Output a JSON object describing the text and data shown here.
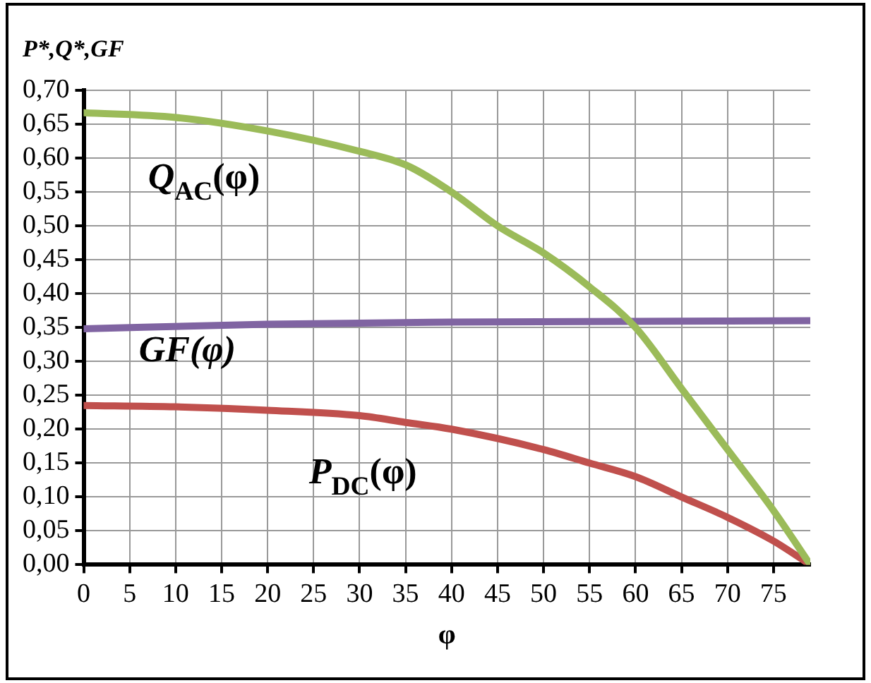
{
  "chart_data": {
    "type": "line",
    "ylabel": "P*,Q*,GF",
    "xlabel": "φ",
    "xlim": [
      0,
      79
    ],
    "xticks": [
      0,
      5,
      10,
      15,
      20,
      25,
      30,
      35,
      40,
      45,
      50,
      55,
      60,
      65,
      70,
      75
    ],
    "ylim": [
      0,
      0.7
    ],
    "yticks": [
      {
        "value": 0,
        "label": "0,00"
      },
      {
        "value": 0.05,
        "label": "0,05"
      },
      {
        "value": 0.1,
        "label": "0,10"
      },
      {
        "value": 0.15,
        "label": "0,15"
      },
      {
        "value": 0.2,
        "label": "0,20"
      },
      {
        "value": 0.25,
        "label": "0,25"
      },
      {
        "value": 0.3,
        "label": "0,30"
      },
      {
        "value": 0.35,
        "label": "0,35"
      },
      {
        "value": 0.4,
        "label": "0,40"
      },
      {
        "value": 0.45,
        "label": "0,45"
      },
      {
        "value": 0.5,
        "label": "0,50"
      },
      {
        "value": 0.55,
        "label": "0,55"
      },
      {
        "value": 0.6,
        "label": "0,60"
      },
      {
        "value": 0.65,
        "label": "0,65"
      },
      {
        "value": 0.7,
        "label": "0,70"
      }
    ],
    "grid": true,
    "legend": false,
    "marker": "none",
    "line_style": "solid",
    "series": [
      {
        "name": "Q$_{AC}$(φ)",
        "color": "#9bbb59",
        "x": [
          0,
          10,
          20,
          30,
          35,
          40,
          45,
          50,
          55,
          60,
          65,
          70,
          75,
          79
        ],
        "values": [
          0.667,
          0.66,
          0.64,
          0.61,
          0.59,
          0.55,
          0.5,
          0.46,
          0.41,
          0.35,
          0.26,
          0.17,
          0.08,
          0
        ]
      },
      {
        "name": "GF(φ)",
        "color": "#8064a2",
        "x": [
          0,
          20,
          40,
          79
        ],
        "values": [
          0.348,
          0.355,
          0.358,
          0.36
        ]
      },
      {
        "name": "P$_{DC}$(φ)",
        "color": "#c0504d",
        "x": [
          0,
          10,
          20,
          30,
          35,
          40,
          50,
          55,
          60,
          65,
          70,
          75,
          79
        ],
        "values": [
          0.235,
          0.233,
          0.228,
          0.22,
          0.21,
          0.2,
          0.17,
          0.15,
          0.13,
          0.1,
          0.07,
          0.035,
          0
        ]
      }
    ]
  }
}
